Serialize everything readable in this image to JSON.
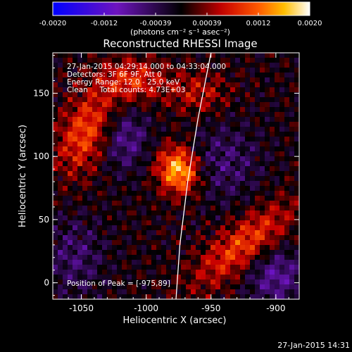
{
  "chart_data": {
    "type": "heatmap",
    "title": "Reconstructed RHESSI Image",
    "xlabel": "Heliocentric X (arcsec)",
    "ylabel": "Heliocentric Y (arcsec)",
    "xlim": [
      -1072,
      -882
    ],
    "ylim": [
      -13,
      182
    ],
    "xticks": [
      -1050,
      -1000,
      -950,
      -900
    ],
    "yticks": [
      0,
      50,
      100,
      150
    ],
    "colorbar": {
      "unit_label": "(photons cm⁻² s⁻¹ asec⁻²)",
      "range": [
        -0.002,
        0.002
      ],
      "ticks": [
        "-0.0020",
        "-0.0012",
        "-0.00039",
        "0.00039",
        "0.0012",
        "0.0020"
      ]
    },
    "info": [
      "27-Jan-2015 04:29:14.000 to 04:33:04.000",
      "Detectors: 3F 6F 9F, Att 0",
      "Energy Range: 12.0 - 25.0 keV",
      "Clean     Total counts: 4.73E+03"
    ],
    "peak_label": "Position of Peak = [-975,89]",
    "peak": {
      "x": -975,
      "y": 89
    },
    "limb_curve": [
      [
        -950,
        182
      ],
      [
        -960,
        130
      ],
      [
        -968,
        80
      ],
      [
        -974,
        30
      ],
      [
        -977,
        -13
      ]
    ],
    "features": [
      {
        "x": -975,
        "y": 89,
        "amp": 1.0,
        "sx": 11,
        "sy": 13,
        "theta": 0.3
      },
      {
        "x": -1045,
        "y": 120,
        "amp": 0.65,
        "sx": 14,
        "sy": 24,
        "theta": -0.4
      },
      {
        "x": -925,
        "y": 30,
        "amp": 0.6,
        "sx": 32,
        "sy": 12,
        "theta": 0.7
      },
      {
        "x": -1010,
        "y": 160,
        "amp": 0.5,
        "sx": 18,
        "sy": 12,
        "theta": 0.0
      },
      {
        "x": -960,
        "y": 150,
        "amp": 0.35,
        "sx": 16,
        "sy": 12,
        "theta": 0.0
      },
      {
        "x": -1018,
        "y": 115,
        "amp": -0.45,
        "sx": 14,
        "sy": 18,
        "theta": 0.0
      },
      {
        "x": -900,
        "y": 5,
        "amp": -0.45,
        "sx": 16,
        "sy": 16,
        "theta": 0.0
      },
      {
        "x": -940,
        "y": 95,
        "amp": -0.3,
        "sx": 20,
        "sy": 22,
        "theta": 0.0
      },
      {
        "x": -1055,
        "y": 20,
        "amp": -0.3,
        "sx": 16,
        "sy": 22,
        "theta": 0.0
      }
    ]
  },
  "footer": {
    "timestamp": "27-Jan-2015 14:31"
  }
}
